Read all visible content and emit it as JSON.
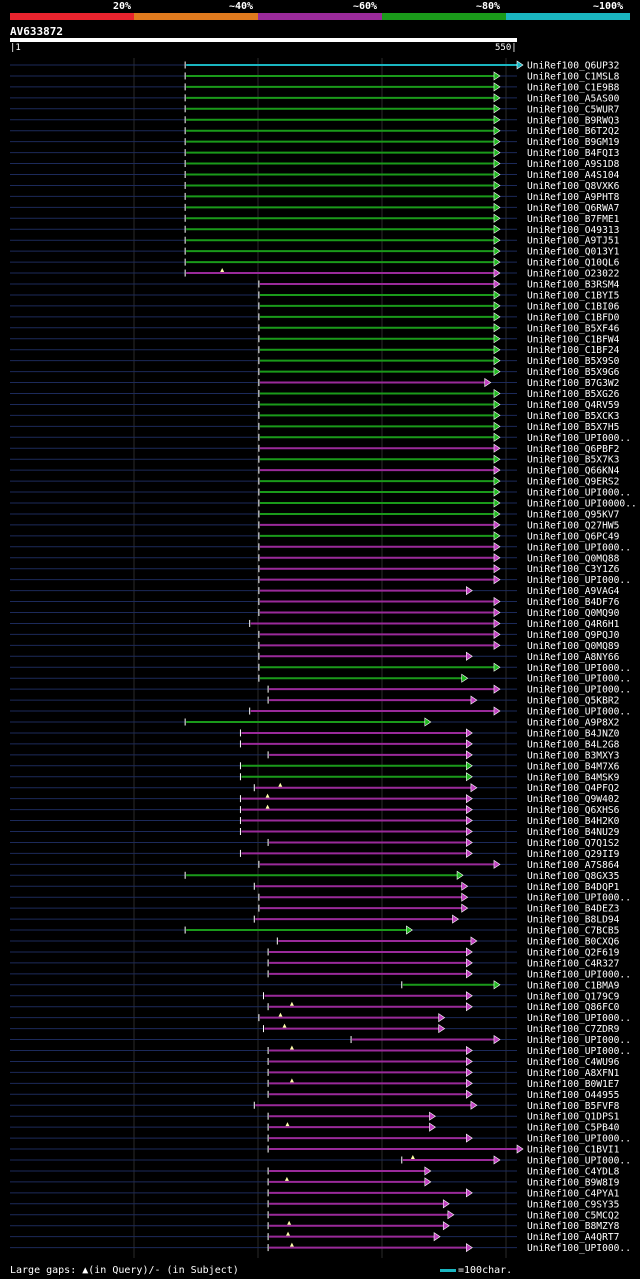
{
  "legend": {
    "labels": [
      "20%",
      "~40%",
      "~60%",
      "~80%",
      "~100%"
    ],
    "colors": [
      "#e8242e",
      "#e07a1e",
      "#9a2a9a",
      "#1a9a1a",
      "#1ab5c0"
    ]
  },
  "query": {
    "name": "AV633872",
    "start": "1",
    "end": "550"
  },
  "footer": {
    "gaps_text": "Large gaps: ▲(in Query)/- (in Subject)",
    "scale_text": "=100char."
  },
  "chart_data": {
    "type": "alignment-overview",
    "query_length": 550,
    "hits": [
      {
        "name": "UniRef100_Q6UP32",
        "start": 190,
        "end": 550,
        "color": "cyan"
      },
      {
        "name": "UniRef100_C1MSL8",
        "start": 190,
        "end": 525,
        "color": "green"
      },
      {
        "name": "UniRef100_C1E9B8",
        "start": 190,
        "end": 525,
        "color": "green"
      },
      {
        "name": "UniRef100_A5AS00",
        "start": 190,
        "end": 525,
        "color": "green"
      },
      {
        "name": "UniRef100_C5WUR7",
        "start": 190,
        "end": 525,
        "color": "green"
      },
      {
        "name": "UniRef100_B9RWQ3",
        "start": 190,
        "end": 525,
        "color": "green"
      },
      {
        "name": "UniRef100_B6T2Q2",
        "start": 190,
        "end": 525,
        "color": "green"
      },
      {
        "name": "UniRef100_B9GM19",
        "start": 190,
        "end": 525,
        "color": "green"
      },
      {
        "name": "UniRef100_B4FQI3",
        "start": 190,
        "end": 525,
        "color": "green"
      },
      {
        "name": "UniRef100_A9S1D8",
        "start": 190,
        "end": 525,
        "color": "green"
      },
      {
        "name": "UniRef100_A4S104",
        "start": 190,
        "end": 525,
        "color": "green"
      },
      {
        "name": "UniRef100_Q8VXK6",
        "start": 190,
        "end": 525,
        "color": "green"
      },
      {
        "name": "UniRef100_A9PHT8",
        "start": 190,
        "end": 525,
        "color": "green"
      },
      {
        "name": "UniRef100_Q6RWA7",
        "start": 190,
        "end": 525,
        "color": "green"
      },
      {
        "name": "UniRef100_B7FME1",
        "start": 190,
        "end": 525,
        "color": "green"
      },
      {
        "name": "UniRef100_O49313",
        "start": 190,
        "end": 525,
        "color": "green"
      },
      {
        "name": "UniRef100_A9TJ51",
        "start": 190,
        "end": 525,
        "color": "green"
      },
      {
        "name": "UniRef100_Q013Y1",
        "start": 190,
        "end": 525,
        "color": "green"
      },
      {
        "name": "UniRef100_Q10QL6",
        "start": 190,
        "end": 525,
        "color": "green"
      },
      {
        "name": "UniRef100_O23022",
        "start": 190,
        "end": 525,
        "color": "magenta",
        "gap": "query"
      },
      {
        "name": "UniRef100_B3RSM4",
        "start": 270,
        "end": 525,
        "color": "magenta"
      },
      {
        "name": "UniRef100_C1BYI5",
        "start": 270,
        "end": 525,
        "color": "green"
      },
      {
        "name": "UniRef100_C1BI06",
        "start": 270,
        "end": 525,
        "color": "green"
      },
      {
        "name": "UniRef100_C1BFD0",
        "start": 270,
        "end": 525,
        "color": "green"
      },
      {
        "name": "UniRef100_B5XF46",
        "start": 270,
        "end": 525,
        "color": "green"
      },
      {
        "name": "UniRef100_C1BFW4",
        "start": 270,
        "end": 525,
        "color": "green"
      },
      {
        "name": "UniRef100_C1BF24",
        "start": 270,
        "end": 525,
        "color": "green"
      },
      {
        "name": "UniRef100_B5X9S0",
        "start": 270,
        "end": 525,
        "color": "green"
      },
      {
        "name": "UniRef100_B5X9G6",
        "start": 270,
        "end": 525,
        "color": "green"
      },
      {
        "name": "UniRef100_B7G3W2",
        "start": 270,
        "end": 515,
        "color": "magenta"
      },
      {
        "name": "UniRef100_B5XG26",
        "start": 270,
        "end": 525,
        "color": "green"
      },
      {
        "name": "UniRef100_Q4RV59",
        "start": 270,
        "end": 525,
        "color": "green"
      },
      {
        "name": "UniRef100_B5XCK3",
        "start": 270,
        "end": 525,
        "color": "green"
      },
      {
        "name": "UniRef100_B5X7H5",
        "start": 270,
        "end": 525,
        "color": "green"
      },
      {
        "name": "UniRef100_UPI000..",
        "start": 270,
        "end": 525,
        "color": "green"
      },
      {
        "name": "UniRef100_Q6PBF2",
        "start": 270,
        "end": 525,
        "color": "magenta"
      },
      {
        "name": "UniRef100_B5X7K3",
        "start": 270,
        "end": 525,
        "color": "green"
      },
      {
        "name": "UniRef100_Q66KN4",
        "start": 270,
        "end": 525,
        "color": "magenta"
      },
      {
        "name": "UniRef100_Q9ERS2",
        "start": 270,
        "end": 525,
        "color": "green"
      },
      {
        "name": "UniRef100_UPI000..",
        "start": 270,
        "end": 525,
        "color": "green"
      },
      {
        "name": "UniRef100_UPI0000..",
        "start": 270,
        "end": 525,
        "color": "green"
      },
      {
        "name": "UniRef100_Q95KV7",
        "start": 270,
        "end": 525,
        "color": "green"
      },
      {
        "name": "UniRef100_Q27HW5",
        "start": 270,
        "end": 525,
        "color": "magenta"
      },
      {
        "name": "UniRef100_Q6PC49",
        "start": 270,
        "end": 525,
        "color": "green"
      },
      {
        "name": "UniRef100_UPI000..",
        "start": 270,
        "end": 525,
        "color": "magenta"
      },
      {
        "name": "UniRef100_Q0MQ88",
        "start": 270,
        "end": 525,
        "color": "magenta"
      },
      {
        "name": "UniRef100_C3Y1Z6",
        "start": 270,
        "end": 525,
        "color": "magenta"
      },
      {
        "name": "UniRef100_UPI000..",
        "start": 270,
        "end": 525,
        "color": "magenta"
      },
      {
        "name": "UniRef100_A9VAG4",
        "start": 270,
        "end": 495,
        "color": "magenta"
      },
      {
        "name": "UniRef100_B4DF76",
        "start": 270,
        "end": 525,
        "color": "magenta"
      },
      {
        "name": "UniRef100_Q0MQ90",
        "start": 270,
        "end": 525,
        "color": "magenta"
      },
      {
        "name": "UniRef100_Q4R6H1",
        "start": 260,
        "end": 525,
        "color": "magenta"
      },
      {
        "name": "UniRef100_Q9PQJ0",
        "start": 270,
        "end": 525,
        "color": "magenta"
      },
      {
        "name": "UniRef100_Q0MQ89",
        "start": 270,
        "end": 525,
        "color": "magenta"
      },
      {
        "name": "UniRef100_A8NY66",
        "start": 270,
        "end": 495,
        "color": "magenta"
      },
      {
        "name": "UniRef100_UPI000..",
        "start": 270,
        "end": 525,
        "color": "green"
      },
      {
        "name": "UniRef100_UPI000..",
        "start": 270,
        "end": 490,
        "color": "green"
      },
      {
        "name": "UniRef100_UPI000..",
        "start": 280,
        "end": 525,
        "color": "magenta"
      },
      {
        "name": "UniRef100_Q5KBR2",
        "start": 280,
        "end": 500,
        "color": "magenta"
      },
      {
        "name": "UniRef100_UPI000..",
        "start": 260,
        "end": 525,
        "color": "magenta"
      },
      {
        "name": "UniRef100_A9P8X2",
        "start": 190,
        "end": 450,
        "color": "green"
      },
      {
        "name": "UniRef100_B4JNZ0",
        "start": 250,
        "end": 495,
        "color": "magenta"
      },
      {
        "name": "UniRef100_B4L2G8",
        "start": 250,
        "end": 495,
        "color": "magenta"
      },
      {
        "name": "UniRef100_B3MXY3",
        "start": 280,
        "end": 495,
        "color": "magenta"
      },
      {
        "name": "UniRef100_B4M7X6",
        "start": 250,
        "end": 495,
        "color": "green"
      },
      {
        "name": "UniRef100_B4MSK9",
        "start": 250,
        "end": 495,
        "color": "green"
      },
      {
        "name": "UniRef100_Q4PFQ2",
        "start": 265,
        "end": 500,
        "color": "magenta",
        "gap": "query"
      },
      {
        "name": "UniRef100_Q9W402",
        "start": 250,
        "end": 495,
        "color": "magenta",
        "gap": "query"
      },
      {
        "name": "UniRef100_Q6XHS6",
        "start": 250,
        "end": 495,
        "color": "magenta",
        "gap": "query"
      },
      {
        "name": "UniRef100_B4H2K0",
        "start": 250,
        "end": 495,
        "color": "magenta"
      },
      {
        "name": "UniRef100_B4NU29",
        "start": 250,
        "end": 495,
        "color": "magenta"
      },
      {
        "name": "UniRef100_Q7Q1S2",
        "start": 280,
        "end": 495,
        "color": "magenta"
      },
      {
        "name": "UniRef100_Q29II9",
        "start": 250,
        "end": 495,
        "color": "magenta"
      },
      {
        "name": "UniRef100_A7S864",
        "start": 270,
        "end": 525,
        "color": "magenta"
      },
      {
        "name": "UniRef100_Q8GX35",
        "start": 190,
        "end": 485,
        "color": "green"
      },
      {
        "name": "UniRef100_B4DQP1",
        "start": 265,
        "end": 490,
        "color": "magenta"
      },
      {
        "name": "UniRef100_UPI000..",
        "start": 270,
        "end": 490,
        "color": "magenta"
      },
      {
        "name": "UniRef100_B4DEZ3",
        "start": 270,
        "end": 490,
        "color": "magenta"
      },
      {
        "name": "UniRef100_B8LD94",
        "start": 265,
        "end": 480,
        "color": "magenta"
      },
      {
        "name": "UniRef100_C7BCB5",
        "start": 190,
        "end": 430,
        "color": "green"
      },
      {
        "name": "UniRef100_B0CXQ6",
        "start": 290,
        "end": 500,
        "color": "magenta"
      },
      {
        "name": "UniRef100_Q2F619",
        "start": 280,
        "end": 495,
        "color": "magenta"
      },
      {
        "name": "UniRef100_C4R327",
        "start": 280,
        "end": 495,
        "color": "magenta"
      },
      {
        "name": "UniRef100_UPI000..",
        "start": 280,
        "end": 495,
        "color": "magenta"
      },
      {
        "name": "UniRef100_C1BMA9",
        "start": 425,
        "end": 525,
        "color": "green"
      },
      {
        "name": "UniRef100_Q179C9",
        "start": 275,
        "end": 495,
        "color": "magenta"
      },
      {
        "name": "UniRef100_Q86FC0",
        "start": 280,
        "end": 495,
        "color": "magenta",
        "gap": "query"
      },
      {
        "name": "UniRef100_UPI000..",
        "start": 270,
        "end": 465,
        "color": "magenta",
        "gap": "query"
      },
      {
        "name": "UniRef100_C7ZDR9",
        "start": 275,
        "end": 465,
        "color": "magenta",
        "gap": "query"
      },
      {
        "name": "UniRef100_UPI000..",
        "start": 370,
        "end": 525,
        "color": "magenta"
      },
      {
        "name": "UniRef100_UPI000..",
        "start": 280,
        "end": 495,
        "color": "magenta",
        "gap": "query"
      },
      {
        "name": "UniRef100_C4WU96",
        "start": 280,
        "end": 495,
        "color": "magenta"
      },
      {
        "name": "UniRef100_A8XFN1",
        "start": 280,
        "end": 495,
        "color": "magenta"
      },
      {
        "name": "UniRef100_B0W1E7",
        "start": 280,
        "end": 495,
        "color": "magenta",
        "gap": "query"
      },
      {
        "name": "UniRef100_O44955",
        "start": 280,
        "end": 495,
        "color": "magenta"
      },
      {
        "name": "UniRef100_B5FVF8",
        "start": 265,
        "end": 500,
        "color": "magenta"
      },
      {
        "name": "UniRef100_Q1DPS1",
        "start": 280,
        "end": 455,
        "color": "magenta"
      },
      {
        "name": "UniRef100_C5PB40",
        "start": 280,
        "end": 455,
        "color": "magenta",
        "gap": "query"
      },
      {
        "name": "UniRef100_UPI000..",
        "start": 280,
        "end": 495,
        "color": "magenta"
      },
      {
        "name": "UniRef100_C1BVI1",
        "start": 280,
        "end": 550,
        "color": "magenta"
      },
      {
        "name": "UniRef100_UPI000..",
        "start": 425,
        "end": 525,
        "color": "magenta",
        "gap": "query"
      },
      {
        "name": "UniRef100_C4YDL8",
        "start": 280,
        "end": 450,
        "color": "magenta"
      },
      {
        "name": "UniRef100_B9W8I9",
        "start": 280,
        "end": 450,
        "color": "magenta",
        "gap": "query"
      },
      {
        "name": "UniRef100_C4PYA1",
        "start": 280,
        "end": 495,
        "color": "magenta"
      },
      {
        "name": "UniRef100_C9SY35",
        "start": 280,
        "end": 470,
        "color": "magenta"
      },
      {
        "name": "UniRef100_C5MCQ2",
        "start": 280,
        "end": 475,
        "color": "magenta"
      },
      {
        "name": "UniRef100_B8MZY8",
        "start": 280,
        "end": 470,
        "color": "magenta",
        "gap": "query"
      },
      {
        "name": "UniRef100_A4QRT7",
        "start": 280,
        "end": 460,
        "color": "magenta",
        "gap": "query"
      },
      {
        "name": "UniRef100_UPI000..",
        "start": 280,
        "end": 495,
        "color": "magenta",
        "gap": "query"
      }
    ]
  }
}
